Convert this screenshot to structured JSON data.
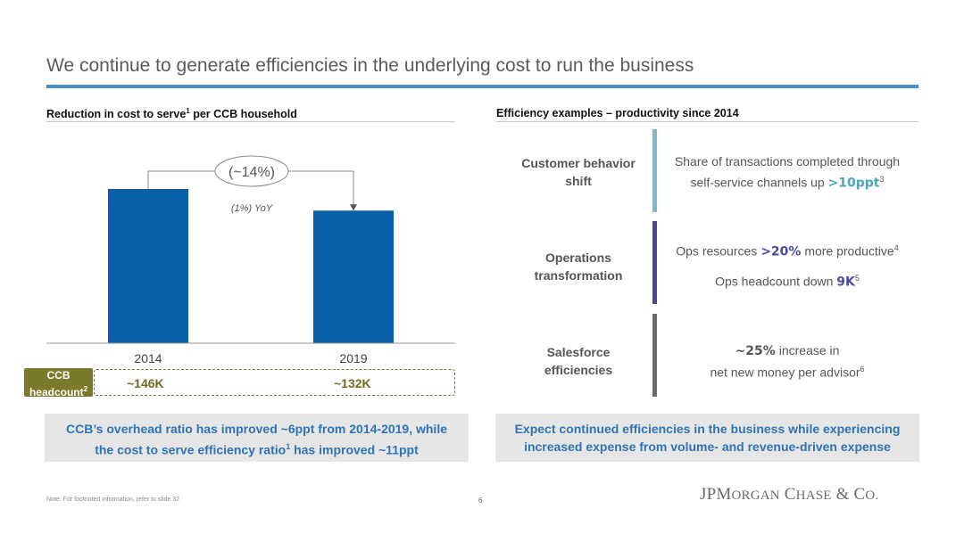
{
  "title": "We continue to generate efficiencies in the underlying cost to run the business",
  "left": {
    "heading_pre": "Reduction in cost to serve",
    "heading_sup": "1",
    "heading_post": " per CCB household",
    "change_label": "(~14%)",
    "yoy_label": "(1%) YoY",
    "headcount_label": "CCB headcount",
    "headcount_label_line1": "CCB",
    "headcount_label_line2": "headcount",
    "headcount_sup": "2",
    "headcount_values": [
      "~146K",
      "~132K"
    ],
    "callout_line1": "CCB’s overhead ratio has improved ~6ppt from 2014-2019, while",
    "callout_line2_pre": "the cost to serve efficiency ratio",
    "callout_line2_sup": "1",
    "callout_line2_post": " has improved ~11ppt"
  },
  "chart_data": {
    "type": "bar",
    "categories": [
      "2014",
      "2019"
    ],
    "values": [
      100,
      86
    ],
    "bar_color": "#0b5ea8",
    "ylim": [
      0,
      100
    ],
    "annotations": [
      "(~14%)",
      "(1%) YoY"
    ]
  },
  "right": {
    "heading": "Efficiency examples – productivity since 2014",
    "examples": [
      {
        "category_line1": "Customer behavior",
        "category_line2": "shift",
        "bar_color": "#7fb8c8",
        "line1": "Share of transactions completed through",
        "line2_pre": "self-service channels up ",
        "line2_highlight": ">10ppt",
        "line2_sup": "3"
      },
      {
        "category_line1": "Operations",
        "category_line2": "transformation",
        "bar_color": "#4a4a8c",
        "line1_pre": "Ops resources ",
        "line1_highlight": ">20%",
        "line1_post": " more productive",
        "line1_sup": "4",
        "line2_pre": "Ops headcount down ",
        "line2_highlight": "9K",
        "line2_sup": "5"
      },
      {
        "category_line1": "Salesforce",
        "category_line2": "efficiencies",
        "bar_color": "#6b6b6b",
        "line1_highlight": "~25%",
        "line1_post": " increase in",
        "line2_pre": "net new money per advisor",
        "line2_sup": "6"
      }
    ],
    "callout_line1": "Expect continued efficiencies in the business while experiencing",
    "callout_line2": "increased expense from volume- and revenue-driven expense"
  },
  "footer": {
    "note": "Note: For footnoted information, refer to slide 32",
    "page": "6",
    "logo_j": "JP",
    "logo_m": "M",
    "logo_organ": "ORGAN",
    "logo_c": "C",
    "logo_hase": "HASE",
    "logo_amp": "&",
    "logo_co": "C",
    "logo_o": "O."
  },
  "colors": {
    "accent_blue": "#2e74b5",
    "title_rule": "#4a90c8",
    "headcount_olive": "#7b7a2b"
  }
}
